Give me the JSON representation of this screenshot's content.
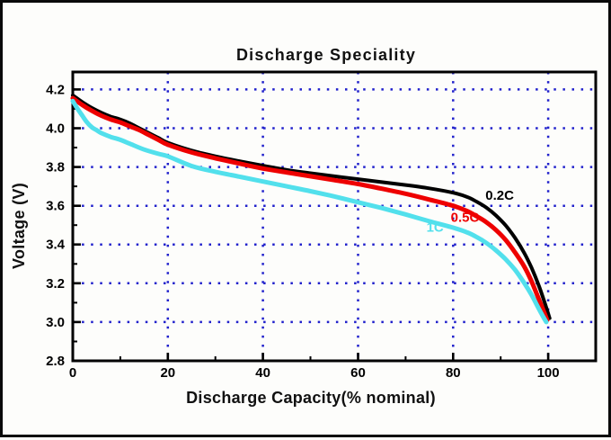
{
  "chart_data": {
    "type": "line",
    "title": "Discharge Speciality",
    "xlabel": "Discharge Capacity(% nominal)",
    "ylabel": "Voltage (V)",
    "xlim": [
      0,
      110
    ],
    "ylim": [
      2.8,
      4.29
    ],
    "x_ticks": [
      0,
      20,
      40,
      60,
      80,
      100
    ],
    "y_ticks": [
      2.8,
      3.0,
      3.2,
      3.4,
      3.6,
      3.8,
      4.0,
      4.2
    ],
    "x_minor_step": 10,
    "y_minor_step": 0.1,
    "grid": {
      "style": "dotted",
      "color": "#2121cc",
      "x_lines": [
        20,
        40,
        60,
        80,
        100
      ],
      "y_lines": [
        3.0,
        3.2,
        3.4,
        3.6,
        3.8,
        4.0,
        4.2
      ]
    },
    "legend_position": "inline-annotations",
    "series": [
      {
        "name": "0.2C",
        "color": "#000000",
        "width": 4,
        "points": [
          [
            0,
            4.17
          ],
          [
            2,
            4.135
          ],
          [
            4,
            4.105
          ],
          [
            6,
            4.08
          ],
          [
            8,
            4.06
          ],
          [
            10,
            4.045
          ],
          [
            12,
            4.025
          ],
          [
            14,
            4.0
          ],
          [
            16,
            3.975
          ],
          [
            18,
            3.95
          ],
          [
            20,
            3.925
          ],
          [
            25,
            3.885
          ],
          [
            30,
            3.855
          ],
          [
            35,
            3.83
          ],
          [
            40,
            3.807
          ],
          [
            45,
            3.785
          ],
          [
            50,
            3.768
          ],
          [
            55,
            3.752
          ],
          [
            60,
            3.737
          ],
          [
            65,
            3.722
          ],
          [
            70,
            3.707
          ],
          [
            75,
            3.69
          ],
          [
            80,
            3.667
          ],
          [
            83,
            3.645
          ],
          [
            85,
            3.62
          ],
          [
            87,
            3.59
          ],
          [
            89,
            3.55
          ],
          [
            91,
            3.5
          ],
          [
            93,
            3.435
          ],
          [
            95,
            3.355
          ],
          [
            96.5,
            3.28
          ],
          [
            98,
            3.19
          ],
          [
            99,
            3.12
          ],
          [
            99.8,
            3.06
          ],
          [
            100.3,
            3.02
          ]
        ]
      },
      {
        "name": "0.5C",
        "color": "#ee0000",
        "width": 5,
        "points": [
          [
            0,
            4.155
          ],
          [
            2,
            4.12
          ],
          [
            4,
            4.09
          ],
          [
            6,
            4.065
          ],
          [
            8,
            4.045
          ],
          [
            10,
            4.03
          ],
          [
            12,
            4.01
          ],
          [
            14,
            3.99
          ],
          [
            16,
            3.965
          ],
          [
            18,
            3.94
          ],
          [
            20,
            3.915
          ],
          [
            25,
            3.875
          ],
          [
            30,
            3.845
          ],
          [
            35,
            3.818
          ],
          [
            40,
            3.792
          ],
          [
            45,
            3.772
          ],
          [
            50,
            3.752
          ],
          [
            55,
            3.732
          ],
          [
            60,
            3.712
          ],
          [
            65,
            3.688
          ],
          [
            70,
            3.662
          ],
          [
            75,
            3.632
          ],
          [
            80,
            3.6
          ],
          [
            83,
            3.572
          ],
          [
            85,
            3.545
          ],
          [
            87,
            3.515
          ],
          [
            89,
            3.475
          ],
          [
            91,
            3.425
          ],
          [
            93,
            3.36
          ],
          [
            95,
            3.285
          ],
          [
            96.5,
            3.21
          ],
          [
            98,
            3.12
          ],
          [
            99,
            3.06
          ],
          [
            99.8,
            3.01
          ]
        ]
      },
      {
        "name": "1C",
        "color": "#52e0ec",
        "width": 5,
        "points": [
          [
            0,
            4.14
          ],
          [
            1,
            4.1
          ],
          [
            2,
            4.065
          ],
          [
            3,
            4.03
          ],
          [
            4,
            4.005
          ],
          [
            5,
            3.99
          ],
          [
            6,
            3.975
          ],
          [
            8,
            3.955
          ],
          [
            10,
            3.94
          ],
          [
            12,
            3.92
          ],
          [
            15,
            3.89
          ],
          [
            18,
            3.868
          ],
          [
            20,
            3.855
          ],
          [
            25,
            3.805
          ],
          [
            30,
            3.775
          ],
          [
            35,
            3.75
          ],
          [
            40,
            3.725
          ],
          [
            45,
            3.7
          ],
          [
            50,
            3.675
          ],
          [
            55,
            3.648
          ],
          [
            60,
            3.618
          ],
          [
            65,
            3.588
          ],
          [
            70,
            3.555
          ],
          [
            75,
            3.52
          ],
          [
            80,
            3.487
          ],
          [
            83,
            3.462
          ],
          [
            85,
            3.438
          ],
          [
            87,
            3.408
          ],
          [
            89,
            3.37
          ],
          [
            91,
            3.325
          ],
          [
            93,
            3.27
          ],
          [
            95,
            3.2
          ],
          [
            96.5,
            3.14
          ],
          [
            98,
            3.07
          ],
          [
            99,
            3.025
          ],
          [
            99.6,
            3.0
          ]
        ]
      }
    ],
    "annotations": [
      {
        "text": "0.2C",
        "x": 89.8,
        "y": 3.655,
        "color": "#000000"
      },
      {
        "text": "0.5C",
        "x": 82.5,
        "y": 3.54,
        "color": "#ee0000"
      },
      {
        "text": "1C",
        "x": 76.2,
        "y": 3.49,
        "color": "#52e0ec"
      }
    ]
  }
}
